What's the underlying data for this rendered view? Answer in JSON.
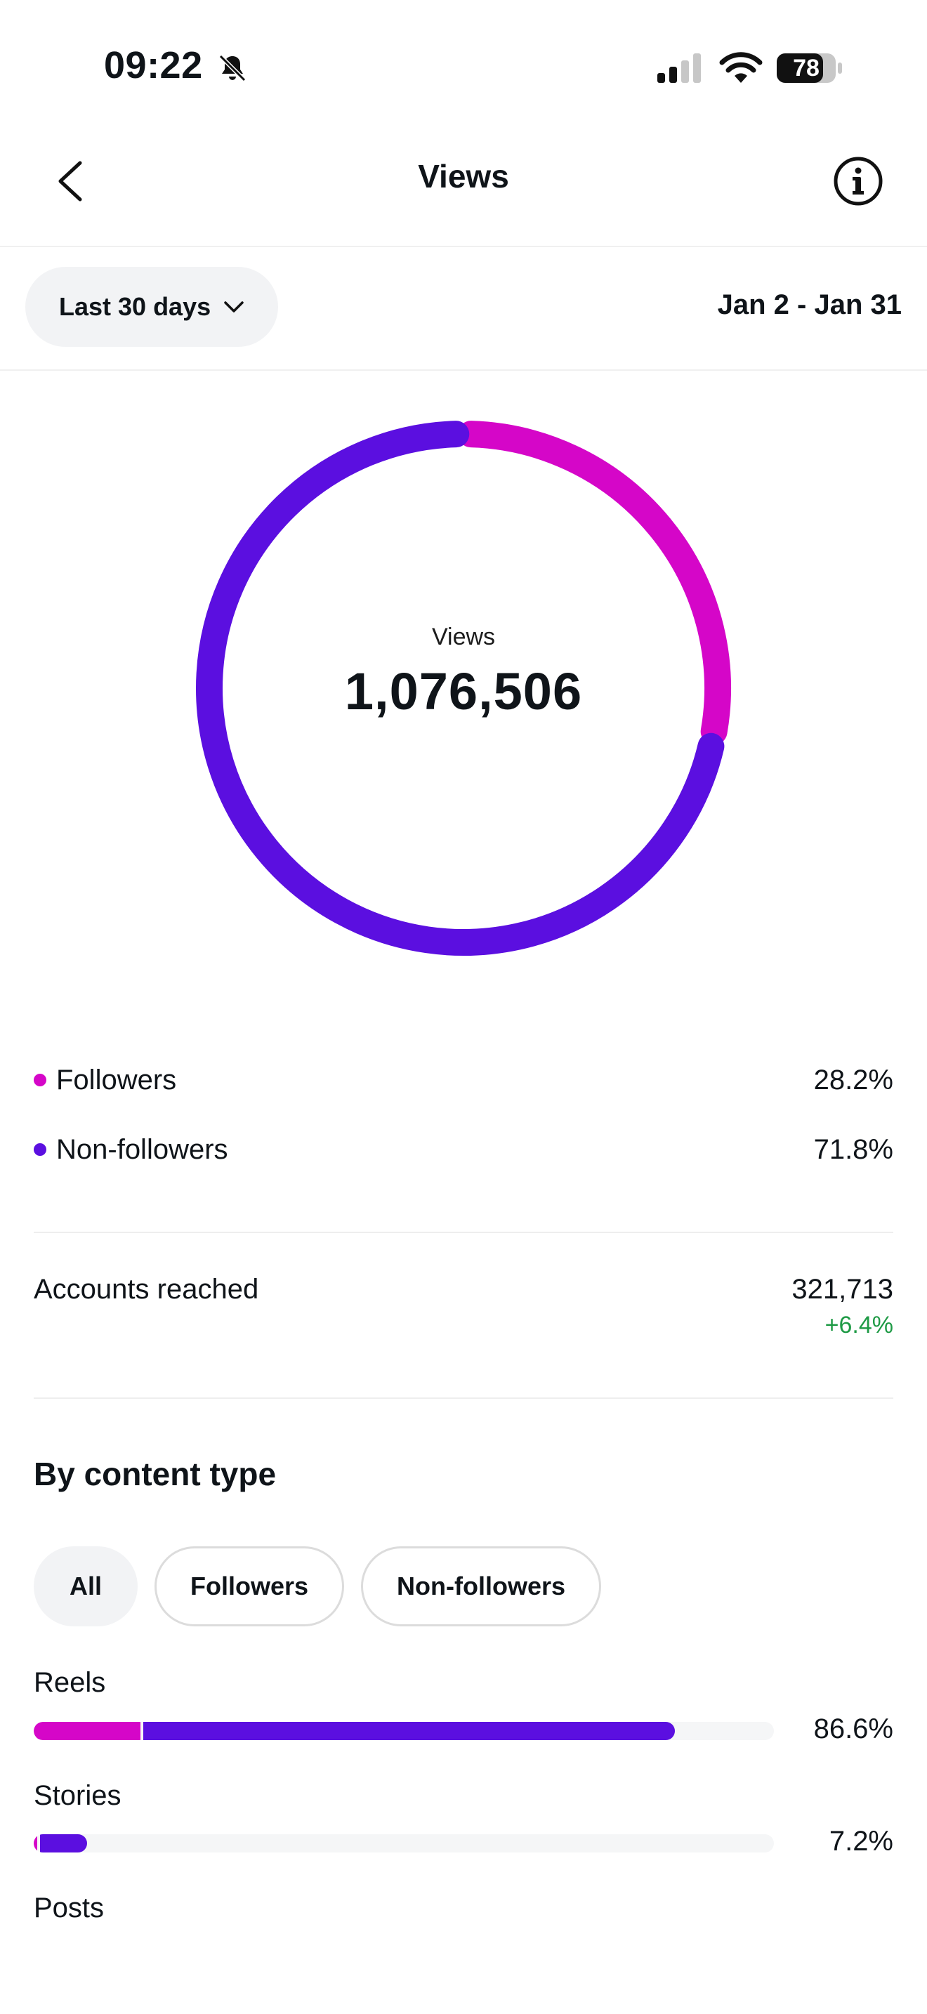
{
  "status_bar": {
    "time": "09:22",
    "battery": "78"
  },
  "header": {
    "title": "Views"
  },
  "filter": {
    "range_label": "Last 30 days",
    "date_range": "Jan 2 - Jan 31"
  },
  "summary": {
    "label": "Views",
    "total": "1,076,506"
  },
  "colors": {
    "followers": "#d506c8",
    "non_followers": "#5b0fe0",
    "positive": "#1e9a45"
  },
  "audience": [
    {
      "name": "Followers",
      "percent": "28.2%",
      "value": 28.2
    },
    {
      "name": "Non-followers",
      "percent": "71.8%",
      "value": 71.8
    }
  ],
  "accounts_reached": {
    "label": "Accounts reached",
    "value": "321,713",
    "change": "+6.4%"
  },
  "content_type": {
    "title": "By content type",
    "chips": [
      "All",
      "Followers",
      "Non-followers"
    ],
    "active_chip": "All",
    "items": [
      {
        "name": "Reels",
        "percent": "86.6%",
        "total": 86.6,
        "followers_share": 16.7
      },
      {
        "name": "Stories",
        "percent": "7.2%",
        "total": 7.2,
        "followers_share": 6.3
      },
      {
        "name": "Posts",
        "percent": "",
        "total": 0,
        "followers_share": 0
      }
    ]
  }
}
